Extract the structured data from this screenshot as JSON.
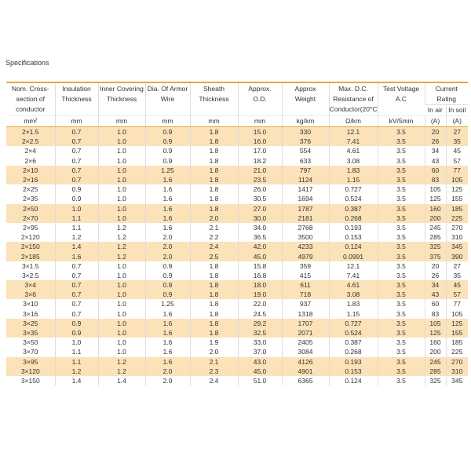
{
  "title": "Specifications",
  "table": {
    "header": [
      {
        "lines": [
          "Nom. Cross-",
          "section of",
          "conductor"
        ]
      },
      {
        "lines": [
          "Insulation",
          "Thickness"
        ]
      },
      {
        "lines": [
          "Inner Covering",
          "Thickness"
        ]
      },
      {
        "lines": [
          "Dia. Of Armor",
          "Wire"
        ]
      },
      {
        "lines": [
          "Sheath",
          "Thickness"
        ]
      },
      {
        "lines": [
          "Approx.",
          "O.D."
        ]
      },
      {
        "lines": [
          "Approx",
          "Weight"
        ]
      },
      {
        "lines": [
          "Max. D.C.",
          "Resistance of",
          "Conductor(20°C)"
        ]
      },
      {
        "lines": [
          "Test Voltage",
          "A.C"
        ]
      }
    ],
    "current_rating": {
      "lines": [
        "Current",
        "Rating"
      ],
      "sub": [
        "In air",
        "In soil"
      ]
    },
    "units": [
      "mm²",
      "mm",
      "mm",
      "mm",
      "mm",
      "mm",
      "kg/km",
      "Ω/km",
      "kV/5min",
      "(A)",
      "(A)"
    ],
    "rows": [
      [
        "2×1.5",
        "0.7",
        "1.0",
        "0.9",
        "1.8",
        "15.0",
        "330",
        "12.1",
        "3.5",
        "20",
        "27"
      ],
      [
        "2×2.5",
        "0.7",
        "1.0",
        "0.9",
        "1.8",
        "16.0",
        "376",
        "7.41",
        "3.5",
        "26",
        "35"
      ],
      [
        "2×4",
        "0.7",
        "1.0",
        "0.9",
        "1.8",
        "17.0",
        "554",
        "4.61",
        "3.5",
        "34",
        "45"
      ],
      [
        "2×6",
        "0.7",
        "1.0",
        "0.9",
        "1.8",
        "18.2",
        "633",
        "3.08",
        "3.5",
        "43",
        "57"
      ],
      [
        "2×10",
        "0.7",
        "1.0",
        "1.25",
        "1.8",
        "21.0",
        "797",
        "1.83",
        "3.5",
        "60",
        "77"
      ],
      [
        "2×16",
        "0.7",
        "1.0",
        "1.6",
        "1.8",
        "23.5",
        "1124",
        "1.15",
        "3.5",
        "83",
        "105"
      ],
      [
        "2×25",
        "0.9",
        "1.0",
        "1.6",
        "1.8",
        "26.0",
        "1417",
        "0.727",
        "3.5",
        "105",
        "125"
      ],
      [
        "2×35",
        "0.9",
        "1.0",
        "1.6",
        "1.8",
        "30.5",
        "1694",
        "0.524",
        "3.5",
        "125",
        "155"
      ],
      [
        "2×50",
        "1.0",
        "1.0",
        "1.6",
        "1.8",
        "27.0",
        "1787",
        "0.387",
        "3.5",
        "160",
        "185"
      ],
      [
        "2×70",
        "1.1",
        "1.0",
        "1.6",
        "2.0",
        "30.0",
        "2181",
        "0.268",
        "3.5",
        "200",
        "225"
      ],
      [
        "2×95",
        "1.1",
        "1.2",
        "1.6",
        "2.1",
        "34.0",
        "2768",
        "0.193",
        "3.5",
        "245",
        "270"
      ],
      [
        "2×120",
        "1.2",
        "1.2",
        "2.0",
        "2.2",
        "36.5",
        "3500",
        "0.153",
        "3.5",
        "285",
        "310"
      ],
      [
        "2×150",
        "1.4",
        "1.2",
        "2.0",
        "2.4",
        "42.0",
        "4233",
        "0.124",
        "3.5",
        "325",
        "345"
      ],
      [
        "2×185",
        "1.6",
        "1.2",
        "2.0",
        "2.5",
        "45.0",
        "4979",
        "0.0991",
        "3.5",
        "375",
        "390"
      ],
      [
        "3×1.5",
        "0.7",
        "1.0",
        "0.9",
        "1.8",
        "15.8",
        "359",
        "12.1",
        "3.5",
        "20",
        "27"
      ],
      [
        "3×2.5",
        "0.7",
        "1.0",
        "0.9",
        "1.8",
        "16.8",
        "415",
        "7.41",
        "3.5",
        "26",
        "35"
      ],
      [
        "3×4",
        "0.7",
        "1.0",
        "0.9",
        "1.8",
        "18.0",
        "611",
        "4.61",
        "3.5",
        "34",
        "45"
      ],
      [
        "3×6",
        "0.7",
        "1.0",
        "0.9",
        "1.8",
        "19.0",
        "718",
        "3.08",
        "3.5",
        "43",
        "57"
      ],
      [
        "3×10",
        "0.7",
        "1.0",
        "1.25",
        "1.8",
        "22.0",
        "937",
        "1.83",
        "3.5",
        "60",
        "77"
      ],
      [
        "3×16",
        "0.7",
        "1.0",
        "1.6",
        "1.8",
        "24.5",
        "1318",
        "1.15",
        "3.5",
        "83",
        "105"
      ],
      [
        "3×25",
        "0.9",
        "1.0",
        "1.6",
        "1.8",
        "29.2",
        "1707",
        "0.727",
        "3.5",
        "105",
        "125"
      ],
      [
        "3×35",
        "0.9",
        "1.0",
        "1.6",
        "1.8",
        "32.5",
        "2071",
        "0.524",
        "3.5",
        "125",
        "155"
      ],
      [
        "3×50",
        "1.0",
        "1.0",
        "1.6",
        "1.9",
        "33.0",
        "2405",
        "0.387",
        "3.5",
        "160",
        "185"
      ],
      [
        "3×70",
        "1.1",
        "1.0",
        "1.6",
        "2.0",
        "37.0",
        "3084",
        "0.268",
        "3.5",
        "200",
        "225"
      ],
      [
        "3×95",
        "1.1",
        "1.2",
        "1.6",
        "2.1",
        "43.0",
        "4126",
        "0.193",
        "3.5",
        "245",
        "270"
      ],
      [
        "3×120",
        "1.2",
        "1.2",
        "2.0",
        "2.3",
        "45.0",
        "4901",
        "0.153",
        "3.5",
        "285",
        "310"
      ],
      [
        "3×150",
        "1.4",
        "1.4",
        "2.0",
        "2.4",
        "51.0",
        "6365",
        "0.124",
        "3.5",
        "325",
        "345"
      ]
    ]
  }
}
